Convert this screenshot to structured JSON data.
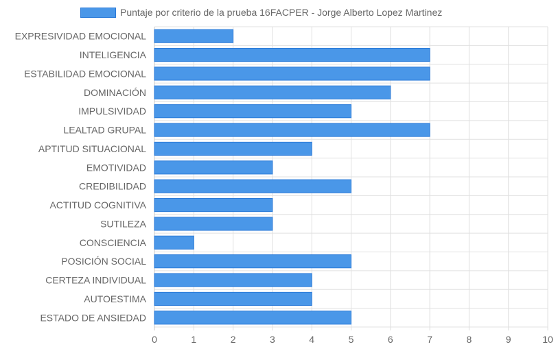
{
  "chart_data": {
    "type": "bar",
    "orientation": "horizontal",
    "legend": {
      "label": "Puntaje por criterio de la prueba 16FACPER - Jorge Alberto Lopez Martinez",
      "position": "top"
    },
    "categories": [
      "EXPRESIVIDAD EMOCIONAL",
      "INTELIGENCIA",
      "ESTABILIDAD EMOCIONAL",
      "DOMINACIÓN",
      "IMPULSIVIDAD",
      "LEALTAD GRUPAL",
      "APTITUD SITUACIONAL",
      "EMOTIVIDAD",
      "CREDIBILIDAD",
      "ACTITUD COGNITIVA",
      "SUTILEZA",
      "CONSCIENCIA",
      "POSICIÓN SOCIAL",
      "CERTEZA INDIVIDUAL",
      "AUTOESTIMA",
      "ESTADO DE ANSIEDAD"
    ],
    "values": [
      2,
      7,
      7,
      6,
      5,
      7,
      4,
      3,
      5,
      3,
      3,
      1,
      5,
      4,
      4,
      5
    ],
    "xlim": [
      0,
      10
    ],
    "xticks": [
      "0",
      "1",
      "2",
      "3",
      "4",
      "5",
      "6",
      "7",
      "8",
      "9",
      "10"
    ],
    "grid": true,
    "colors": {
      "bar": "#4a97e8",
      "bar_border": "#2a7ad8",
      "grid": "#e0e0e0",
      "text": "#666666"
    }
  }
}
